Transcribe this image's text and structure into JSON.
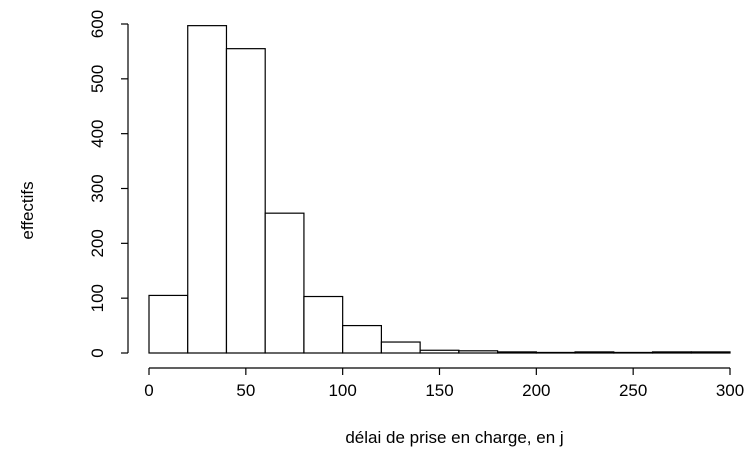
{
  "chart_data": {
    "type": "bar",
    "subtype": "histogram",
    "title": "",
    "xlabel": "délai de prise en charge, en j",
    "ylabel": "effectifs",
    "xlim": [
      0,
      300
    ],
    "ylim": [
      0,
      600
    ],
    "x_ticks": [
      "0",
      "50",
      "100",
      "150",
      "200",
      "250",
      "300"
    ],
    "y_ticks": [
      "0",
      "100",
      "200",
      "300",
      "400",
      "500",
      "600"
    ],
    "bin_edges": [
      0,
      20,
      40,
      60,
      80,
      100,
      120,
      140,
      160,
      180,
      200,
      220,
      240,
      260,
      280,
      300
    ],
    "values": [
      105,
      597,
      555,
      255,
      103,
      50,
      20,
      5,
      4,
      2,
      1,
      2,
      1,
      2,
      2
    ],
    "grid": false,
    "legend": "none",
    "colors": {
      "fill": "#ffffff",
      "stroke": "#000000"
    }
  }
}
